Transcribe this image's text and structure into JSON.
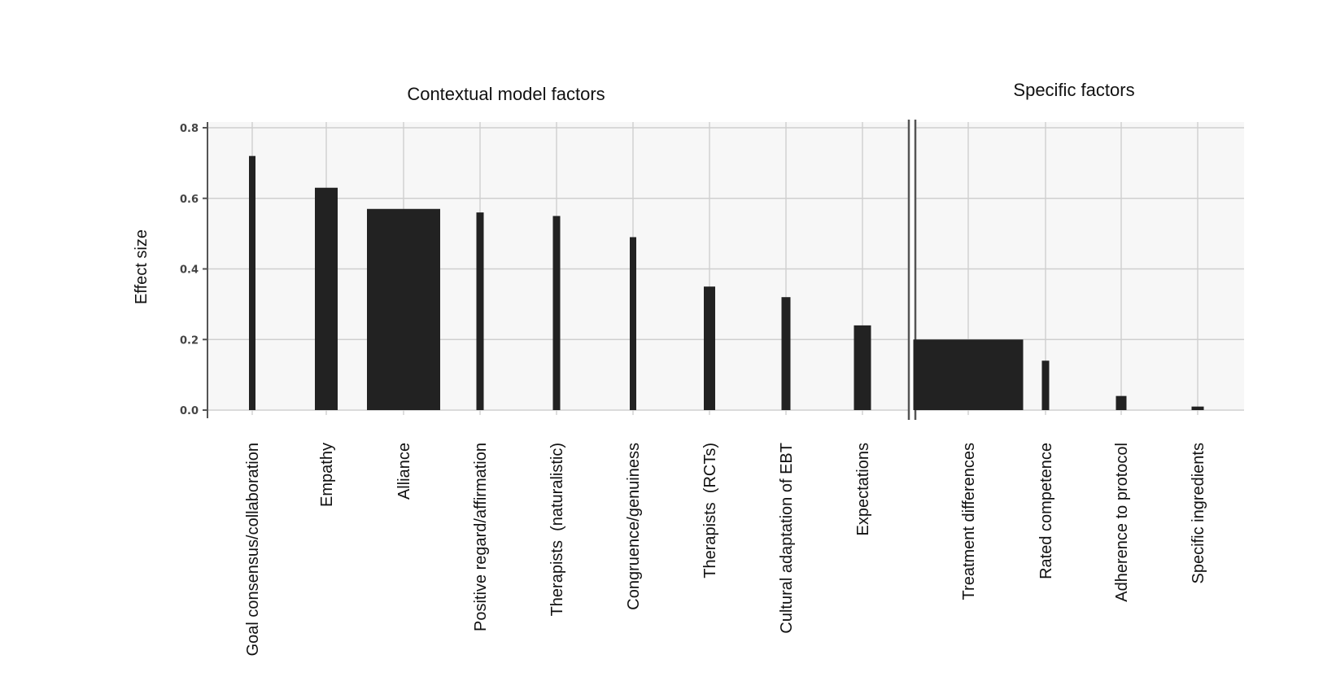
{
  "chart_data": {
    "type": "bar",
    "ylabel": "Effect size",
    "ylim": [
      0,
      0.8
    ],
    "yticks": [
      "0.0",
      "0.2",
      "0.4",
      "0.6",
      "0.8"
    ],
    "grid": true,
    "groups": [
      {
        "title": "Contextual model factors",
        "bars": [
          {
            "label": "Goal consensus/collaboration",
            "value": 0.72
          },
          {
            "label": "Empathy",
            "value": 0.63
          },
          {
            "label": "Alliance",
            "value": 0.57
          },
          {
            "label": "Positive regard/affirmation",
            "value": 0.56
          },
          {
            "label": "Therapists  (naturalistic)",
            "value": 0.55
          },
          {
            "label": "Congruence/genuiness",
            "value": 0.49
          },
          {
            "label": "Therapists  (RCTs)",
            "value": 0.35
          },
          {
            "label": "Cultural adaptation of EBT",
            "value": 0.32
          },
          {
            "label": "Expectations",
            "value": 0.24
          }
        ]
      },
      {
        "title": "Specific factors",
        "bars": [
          {
            "label": "Treatment differences",
            "value": 0.2
          },
          {
            "label": "Rated competence",
            "value": 0.14
          },
          {
            "label": "Adherence to protocol",
            "value": 0.04
          },
          {
            "label": "Specific ingredients",
            "value": 0.01
          }
        ]
      }
    ],
    "colors": {
      "bar": "#222222",
      "panel": "#f7f7f7",
      "grid": "#cfcfcf",
      "axis": "#555555"
    }
  }
}
